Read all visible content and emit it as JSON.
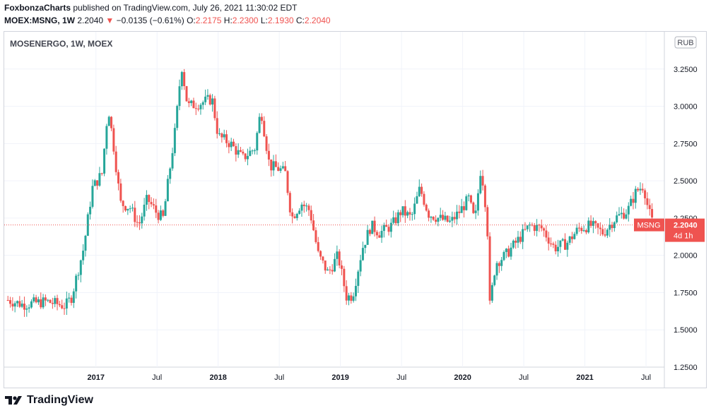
{
  "header": {
    "publisher": "FoxbonzaCharts",
    "publish_text": "published on TradingView.com, July 26, 2021 11:30:02 EDT",
    "symbol": "MOEX:MSNG, 1W",
    "price": "2.2040",
    "change_arrow": "▼",
    "change": "−0.0135 (−0.61%)",
    "o_label": "O:",
    "o_value": "2.2175",
    "h_label": "H:",
    "h_value": "2.2300",
    "l_label": "L:",
    "l_value": "2.1930",
    "c_label": "C:",
    "c_value": "2.2040"
  },
  "footer": {
    "brand": "TradingView"
  },
  "chart_data": {
    "type": "candlestick",
    "title": "MOSENERGO, 1W, MOEX",
    "currency": "RUB",
    "y_ticks": [
      "3.2500",
      "3.0000",
      "2.7500",
      "2.5000",
      "2.2500",
      "2.0000",
      "1.7500",
      "1.5000",
      "1.2500"
    ],
    "y_range": [
      1.25,
      3.5
    ],
    "x_ticks": [
      "2017",
      "Jul",
      "2018",
      "Jul",
      "2019",
      "Jul",
      "2020",
      "Jul",
      "2021",
      "Jul"
    ],
    "current_price": {
      "symbol": "MSNG",
      "value": "2.2040",
      "countdown": "4d 1h"
    },
    "colors": {
      "up": "#26a69a",
      "down": "#ef5350",
      "grid": "#f0f3fa",
      "axis_text": "#131722"
    },
    "approx_weekly_closes": [
      [
        2016.28,
        1.7
      ],
      [
        2016.4,
        1.67
      ],
      [
        2016.6,
        1.69
      ],
      [
        2016.75,
        1.66
      ],
      [
        2016.8,
        1.72
      ],
      [
        2016.9,
        2.05
      ],
      [
        2016.97,
        2.45
      ],
      [
        2017.05,
        2.55
      ],
      [
        2017.1,
        3.0
      ],
      [
        2017.15,
        2.7
      ],
      [
        2017.2,
        2.35
      ],
      [
        2017.28,
        2.32
      ],
      [
        2017.35,
        2.2
      ],
      [
        2017.42,
        2.38
      ],
      [
        2017.5,
        2.28
      ],
      [
        2017.55,
        2.25
      ],
      [
        2017.6,
        2.55
      ],
      [
        2017.65,
        2.85
      ],
      [
        2017.7,
        3.28
      ],
      [
        2017.75,
        3.0
      ],
      [
        2017.85,
        3.02
      ],
      [
        2017.95,
        3.05
      ],
      [
        2018.0,
        2.8
      ],
      [
        2018.1,
        2.75
      ],
      [
        2018.2,
        2.65
      ],
      [
        2018.3,
        2.72
      ],
      [
        2018.35,
        2.98
      ],
      [
        2018.42,
        2.6
      ],
      [
        2018.5,
        2.58
      ],
      [
        2018.55,
        2.55
      ],
      [
        2018.6,
        2.25
      ],
      [
        2018.68,
        2.35
      ],
      [
        2018.75,
        2.3
      ],
      [
        2018.82,
        2.0
      ],
      [
        2018.9,
        1.88
      ],
      [
        2018.98,
        2.0
      ],
      [
        2019.05,
        1.72
      ],
      [
        2019.1,
        1.73
      ],
      [
        2019.18,
        2.05
      ],
      [
        2019.25,
        2.2
      ],
      [
        2019.32,
        2.15
      ],
      [
        2019.42,
        2.2
      ],
      [
        2019.5,
        2.3
      ],
      [
        2019.58,
        2.25
      ],
      [
        2019.65,
        2.45
      ],
      [
        2019.72,
        2.28
      ],
      [
        2019.8,
        2.25
      ],
      [
        2019.9,
        2.22
      ],
      [
        2019.98,
        2.3
      ],
      [
        2020.05,
        2.38
      ],
      [
        2020.1,
        2.22
      ],
      [
        2020.15,
        2.6
      ],
      [
        2020.2,
        2.25
      ],
      [
        2020.22,
        1.65
      ],
      [
        2020.27,
        1.95
      ],
      [
        2020.35,
        2.0
      ],
      [
        2020.45,
        2.1
      ],
      [
        2020.55,
        2.2
      ],
      [
        2020.65,
        2.18
      ],
      [
        2020.75,
        2.05
      ],
      [
        2020.85,
        2.08
      ],
      [
        2020.95,
        2.18
      ],
      [
        2021.05,
        2.2
      ],
      [
        2021.15,
        2.15
      ],
      [
        2021.25,
        2.25
      ],
      [
        2021.35,
        2.3
      ],
      [
        2021.42,
        2.43
      ],
      [
        2021.48,
        2.47
      ],
      [
        2021.52,
        2.3
      ],
      [
        2021.56,
        2.204
      ]
    ]
  }
}
